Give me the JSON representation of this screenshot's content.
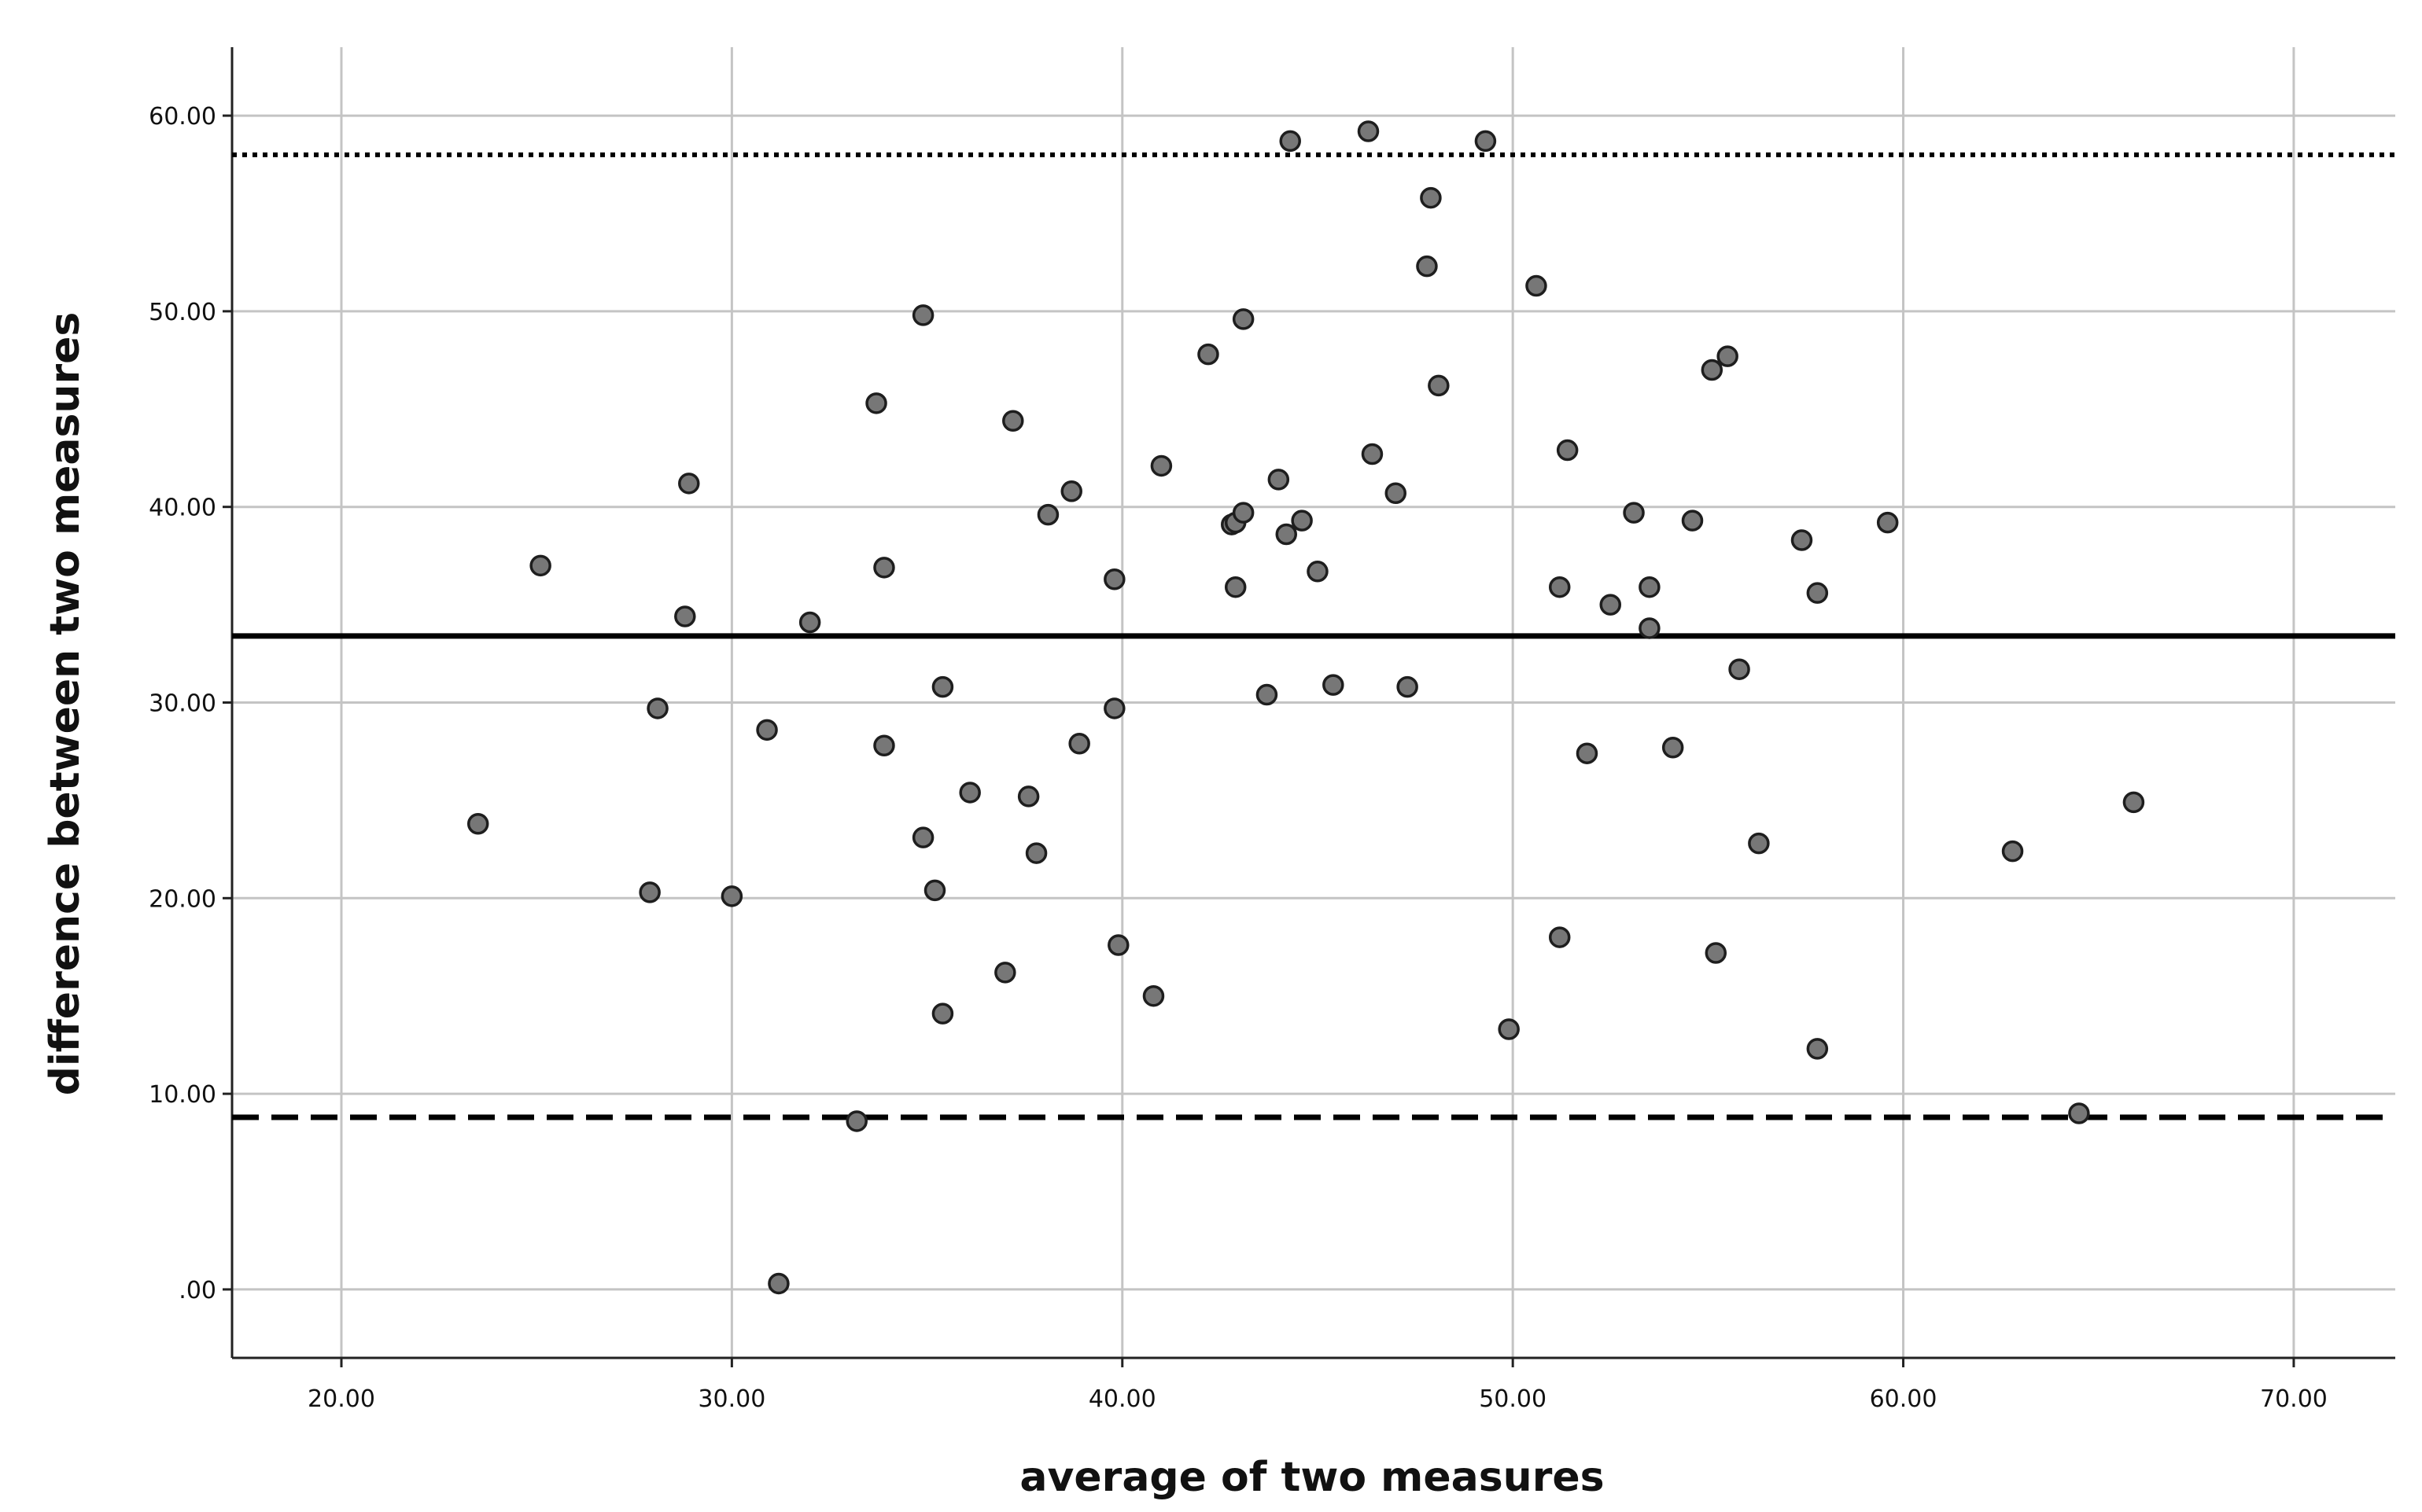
{
  "chart_data": {
    "type": "scatter",
    "title": "",
    "xlabel": "average of two measures",
    "ylabel": "difference between two measures",
    "xlim": [
      17.2,
      72.6
    ],
    "ylim": [
      -3.5,
      63.5
    ],
    "x_ticks": [
      20,
      30,
      40,
      50,
      60,
      70
    ],
    "x_tick_labels": [
      "20.00",
      "30.00",
      "40.00",
      "50.00",
      "60.00",
      "70.00"
    ],
    "y_ticks": [
      0,
      10,
      20,
      30,
      40,
      50,
      60
    ],
    "y_tick_labels": [
      ".00",
      "10.00",
      "20.00",
      "30.00",
      "40.00",
      "50.00",
      "60.00"
    ],
    "grid": true,
    "reference_lines": [
      {
        "y": 58.0,
        "style": "dotted"
      },
      {
        "y": 33.4,
        "style": "solid"
      },
      {
        "y": 8.8,
        "style": "dashed"
      }
    ],
    "points": [
      [
        23.5,
        23.8
      ],
      [
        25.1,
        37.0
      ],
      [
        27.9,
        20.3
      ],
      [
        28.1,
        29.7
      ],
      [
        28.8,
        34.4
      ],
      [
        28.9,
        41.2
      ],
      [
        30.0,
        20.1
      ],
      [
        30.9,
        28.6
      ],
      [
        31.2,
        0.3
      ],
      [
        32.0,
        34.1
      ],
      [
        33.2,
        8.6
      ],
      [
        33.7,
        45.3
      ],
      [
        33.9,
        27.8
      ],
      [
        33.9,
        36.9
      ],
      [
        34.9,
        23.1
      ],
      [
        34.9,
        49.8
      ],
      [
        35.2,
        20.4
      ],
      [
        35.4,
        30.8
      ],
      [
        35.4,
        14.1
      ],
      [
        36.1,
        25.4
      ],
      [
        37.0,
        16.2
      ],
      [
        37.2,
        44.4
      ],
      [
        37.6,
        25.2
      ],
      [
        37.8,
        22.3
      ],
      [
        38.1,
        39.6
      ],
      [
        38.7,
        40.8
      ],
      [
        38.9,
        27.9
      ],
      [
        39.8,
        36.3
      ],
      [
        39.8,
        29.7
      ],
      [
        39.9,
        17.6
      ],
      [
        40.8,
        15.0
      ],
      [
        41.0,
        42.1
      ],
      [
        42.2,
        47.8
      ],
      [
        42.8,
        39.1
      ],
      [
        42.9,
        35.9
      ],
      [
        42.9,
        39.2
      ],
      [
        43.1,
        49.6
      ],
      [
        43.1,
        39.7
      ],
      [
        43.7,
        30.4
      ],
      [
        44.0,
        41.4
      ],
      [
        44.2,
        38.6
      ],
      [
        44.3,
        58.7
      ],
      [
        44.6,
        39.3
      ],
      [
        45.0,
        36.7
      ],
      [
        45.4,
        30.9
      ],
      [
        46.3,
        59.2
      ],
      [
        46.4,
        42.7
      ],
      [
        47.0,
        40.7
      ],
      [
        47.3,
        30.8
      ],
      [
        47.8,
        52.3
      ],
      [
        47.9,
        55.8
      ],
      [
        48.1,
        46.2
      ],
      [
        49.3,
        58.7
      ],
      [
        49.9,
        13.3
      ],
      [
        50.6,
        51.3
      ],
      [
        51.2,
        35.9
      ],
      [
        51.2,
        18.0
      ],
      [
        51.4,
        42.9
      ],
      [
        51.9,
        27.4
      ],
      [
        52.5,
        35.0
      ],
      [
        53.1,
        39.7
      ],
      [
        53.5,
        35.9
      ],
      [
        53.5,
        33.8
      ],
      [
        54.1,
        27.7
      ],
      [
        54.6,
        39.3
      ],
      [
        55.1,
        47.0
      ],
      [
        55.2,
        17.2
      ],
      [
        55.5,
        47.7
      ],
      [
        55.8,
        31.7
      ],
      [
        56.3,
        22.8
      ],
      [
        57.4,
        38.3
      ],
      [
        57.8,
        35.6
      ],
      [
        57.8,
        12.3
      ],
      [
        59.6,
        39.2
      ],
      [
        62.8,
        22.4
      ],
      [
        64.5,
        9.0
      ],
      [
        65.9,
        24.9
      ]
    ]
  }
}
